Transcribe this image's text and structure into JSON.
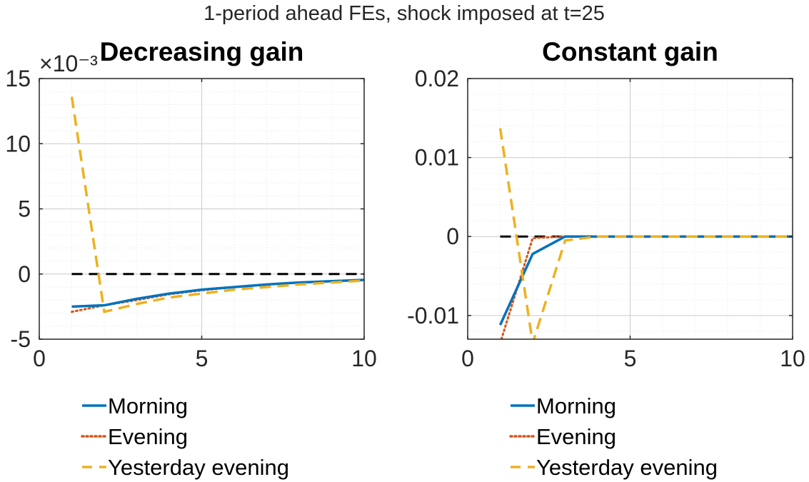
{
  "figure": {
    "title": "1-period ahead FEs, shock imposed at t=25"
  },
  "colors": {
    "morning": "#0072BD",
    "evening": "#D95319",
    "yesterday": "#EDB120",
    "zero_line": "#000000",
    "axes": "#262626",
    "grid": "#cccccc"
  },
  "chart_data": [
    {
      "type": "line",
      "title": "Decreasing gain",
      "xlim": [
        0,
        10
      ],
      "ylim": [
        -5,
        15
      ],
      "xticks": [
        0,
        5,
        10
      ],
      "xtick_labels": [
        "0",
        "5",
        "10"
      ],
      "yticks": [
        -5,
        0,
        5,
        10,
        15
      ],
      "ytick_labels": [
        "-5",
        "0",
        "5",
        "10",
        "15"
      ],
      "y_multiplier": "×10⁻³",
      "grid": true,
      "minor_grid": true,
      "x": [
        1,
        2,
        3,
        4,
        5,
        6,
        7,
        8,
        9,
        10
      ],
      "series": [
        {
          "name": "Morning",
          "style": "solid",
          "values": [
            -2.5,
            -2.4,
            -1.9,
            -1.5,
            -1.2,
            -1.0,
            -0.8,
            -0.65,
            -0.55,
            -0.45
          ]
        },
        {
          "name": "Evening",
          "style": "dotted",
          "values": [
            -2.9,
            -2.4,
            -2.0,
            -1.55,
            -1.25,
            -1.0,
            -0.8,
            -0.65,
            -0.55,
            -0.45
          ]
        },
        {
          "name": "Yesterday evening",
          "style": "dashed",
          "values": [
            13.6,
            -2.9,
            -2.3,
            -1.8,
            -1.5,
            -1.2,
            -1.0,
            -0.8,
            -0.65,
            -0.5
          ]
        }
      ],
      "zero_line": {
        "x": [
          1,
          10
        ],
        "y": 0
      },
      "legend": {
        "placement": "below",
        "entries": [
          "Morning",
          "Evening",
          "Yesterday evening"
        ]
      }
    },
    {
      "type": "line",
      "title": "Constant gain",
      "xlim": [
        0,
        10
      ],
      "ylim": [
        -0.013,
        0.02
      ],
      "xticks": [
        0,
        5,
        10
      ],
      "xtick_labels": [
        "0",
        "5",
        "10"
      ],
      "yticks": [
        -0.01,
        0,
        0.01,
        0.02
      ],
      "ytick_labels": [
        "-0.01",
        "0",
        "0.01",
        "0.02"
      ],
      "grid": true,
      "minor_grid": true,
      "x": [
        1,
        2,
        3,
        4,
        5,
        6,
        7,
        8,
        9,
        10
      ],
      "series": [
        {
          "name": "Morning",
          "style": "solid",
          "values": [
            -0.0112,
            -0.0022,
            0,
            0,
            0,
            0,
            0,
            0,
            0,
            0
          ]
        },
        {
          "name": "Evening",
          "style": "dotted",
          "values": [
            -0.0135,
            -0.0002,
            0,
            0,
            0,
            0,
            0,
            0,
            0,
            0
          ]
        },
        {
          "name": "Yesterday evening",
          "style": "dashed",
          "values": [
            0.0137,
            -0.0135,
            -0.0005,
            0,
            0,
            0,
            0,
            0,
            0,
            0
          ]
        }
      ],
      "zero_line": {
        "x": [
          1,
          3
        ],
        "y": 0
      },
      "legend": {
        "placement": "below",
        "entries": [
          "Morning",
          "Evening",
          "Yesterday evening"
        ]
      }
    }
  ]
}
